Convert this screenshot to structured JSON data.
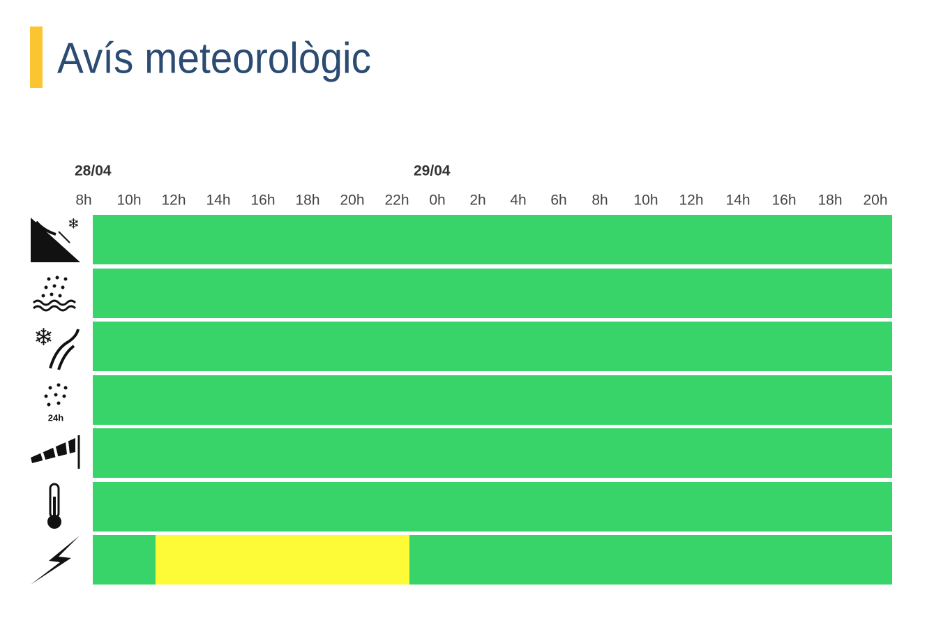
{
  "header": {
    "title": "Avís meteorològic"
  },
  "timeline": {
    "dates": [
      "28/04",
      "29/04"
    ],
    "hours": [
      "8h",
      "10h",
      "12h",
      "14h",
      "16h",
      "18h",
      "20h",
      "22h",
      "0h",
      "2h",
      "4h",
      "6h",
      "8h",
      "10h",
      "12h",
      "14h",
      "16h",
      "18h",
      "20h"
    ],
    "precipitation_icon_label": "24h"
  }
}
